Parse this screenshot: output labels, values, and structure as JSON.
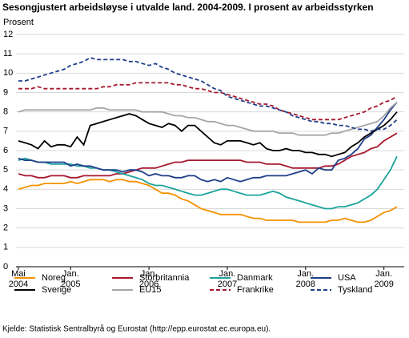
{
  "chart_data": {
    "type": "line",
    "title": "Sesongjustert arbeidsløyse i utvalde land. 2004-2009. I prosent av arbeidsstyrken",
    "y_label": "Prosent",
    "source": "Kjelde: Statistisk Sentralbyrå og Eurostat (http://epp.eurostat.ec.europa.eu).",
    "categories": [
      "Mai\n2004",
      null,
      null,
      null,
      null,
      null,
      null,
      null,
      "Jan.\n2005",
      null,
      null,
      null,
      null,
      null,
      null,
      null,
      null,
      null,
      null,
      null,
      "Jan.\n2006",
      null,
      null,
      null,
      null,
      null,
      null,
      null,
      null,
      null,
      null,
      null,
      "Jan.\n2007",
      null,
      null,
      null,
      null,
      null,
      null,
      null,
      null,
      null,
      null,
      null,
      "Jan.\n2008",
      null,
      null,
      null,
      null,
      null,
      null,
      null,
      null,
      null,
      null,
      null,
      "Jan.\n2009",
      null,
      null
    ],
    "ylim": [
      0,
      12
    ],
    "yticks": [
      0,
      1,
      2,
      3,
      4,
      5,
      6,
      7,
      8,
      9,
      10,
      11,
      12
    ],
    "grid": true,
    "series": [
      {
        "name": "Noreg",
        "color": "#f39200",
        "dashed": false,
        "values": [
          4.0,
          4.1,
          4.2,
          4.2,
          4.3,
          4.3,
          4.3,
          4.3,
          4.4,
          4.3,
          4.4,
          4.5,
          4.5,
          4.5,
          4.4,
          4.5,
          4.5,
          4.4,
          4.4,
          4.3,
          4.2,
          4.0,
          3.8,
          3.8,
          3.7,
          3.5,
          3.4,
          3.2,
          3.0,
          2.9,
          2.8,
          2.7,
          2.7,
          2.7,
          2.7,
          2.6,
          2.5,
          2.5,
          2.4,
          2.4,
          2.4,
          2.4,
          2.4,
          2.3,
          2.3,
          2.3,
          2.3,
          2.3,
          2.4,
          2.4,
          2.5,
          2.4,
          2.3,
          2.3,
          2.4,
          2.6,
          2.8,
          2.9,
          3.1
        ]
      },
      {
        "name": "Storbritannia",
        "color": "#a6192e",
        "dashed": false,
        "values": [
          4.8,
          4.7,
          4.7,
          4.6,
          4.6,
          4.7,
          4.7,
          4.7,
          4.6,
          4.6,
          4.7,
          4.7,
          4.7,
          4.7,
          4.7,
          4.8,
          4.8,
          4.9,
          5.0,
          5.1,
          5.1,
          5.1,
          5.2,
          5.3,
          5.4,
          5.4,
          5.5,
          5.5,
          5.5,
          5.5,
          5.5,
          5.5,
          5.5,
          5.5,
          5.5,
          5.4,
          5.4,
          5.4,
          5.3,
          5.3,
          5.3,
          5.2,
          5.1,
          5.1,
          5.1,
          5.1,
          5.1,
          5.2,
          5.2,
          5.3,
          5.5,
          5.7,
          5.8,
          5.9,
          6.1,
          6.2,
          6.5,
          6.7,
          6.9
        ]
      },
      {
        "name": "Danmark",
        "color": "#1aa39a",
        "dashed": false,
        "values": [
          5.5,
          5.6,
          5.5,
          5.4,
          5.4,
          5.3,
          5.3,
          5.3,
          5.3,
          5.2,
          5.2,
          5.1,
          5.1,
          5.0,
          5.0,
          4.9,
          4.8,
          4.7,
          4.6,
          4.5,
          4.3,
          4.2,
          4.2,
          4.1,
          4.0,
          3.9,
          3.8,
          3.7,
          3.7,
          3.8,
          3.9,
          4.0,
          4.0,
          3.9,
          3.8,
          3.7,
          3.7,
          3.7,
          3.8,
          3.9,
          3.8,
          3.6,
          3.5,
          3.4,
          3.3,
          3.2,
          3.1,
          3.0,
          3.0,
          3.1,
          3.1,
          3.2,
          3.3,
          3.5,
          3.7,
          4.0,
          4.5,
          5.0,
          5.7
        ]
      },
      {
        "name": "USA",
        "color": "#1f3e8a",
        "dashed": false,
        "values": [
          5.6,
          5.5,
          5.5,
          5.4,
          5.4,
          5.4,
          5.4,
          5.4,
          5.2,
          5.3,
          5.2,
          5.2,
          5.1,
          5.0,
          5.0,
          5.0,
          4.9,
          5.0,
          5.0,
          4.9,
          4.7,
          4.8,
          4.7,
          4.7,
          4.6,
          4.6,
          4.7,
          4.7,
          4.5,
          4.4,
          4.5,
          4.4,
          4.6,
          4.5,
          4.4,
          4.5,
          4.6,
          4.6,
          4.7,
          4.7,
          4.7,
          4.7,
          4.8,
          4.9,
          5.0,
          4.8,
          5.1,
          5.0,
          5.0,
          5.5,
          5.6,
          5.8,
          6.1,
          6.6,
          6.8,
          7.2,
          7.6,
          8.1,
          8.5
        ]
      },
      {
        "name": "Sverige",
        "color": "#000000",
        "dashed": false,
        "values": [
          6.5,
          6.4,
          6.3,
          6.1,
          6.5,
          6.2,
          6.3,
          6.3,
          6.2,
          6.7,
          6.3,
          7.3,
          7.4,
          7.5,
          7.6,
          7.7,
          7.8,
          7.9,
          7.8,
          7.6,
          7.4,
          7.3,
          7.2,
          7.4,
          7.3,
          7.0,
          7.3,
          7.3,
          7.0,
          6.7,
          6.4,
          6.3,
          6.5,
          6.5,
          6.5,
          6.4,
          6.3,
          6.4,
          6.1,
          6.0,
          6.0,
          6.1,
          6.0,
          6.0,
          5.9,
          5.9,
          5.8,
          5.8,
          5.7,
          5.8,
          5.9,
          6.2,
          6.4,
          6.7,
          6.9,
          7.1,
          7.3,
          7.6,
          8.0
        ]
      },
      {
        "name": "EU15",
        "color": "#a6a6a6",
        "dashed": false,
        "values": [
          8.0,
          8.1,
          8.1,
          8.1,
          8.1,
          8.1,
          8.1,
          8.1,
          8.1,
          8.1,
          8.1,
          8.1,
          8.2,
          8.2,
          8.1,
          8.1,
          8.1,
          8.1,
          8.1,
          8.0,
          8.0,
          8.0,
          8.0,
          7.9,
          7.8,
          7.8,
          7.7,
          7.7,
          7.6,
          7.5,
          7.5,
          7.4,
          7.3,
          7.3,
          7.2,
          7.1,
          7.0,
          7.0,
          7.0,
          7.0,
          6.9,
          6.9,
          6.9,
          6.8,
          6.8,
          6.8,
          6.8,
          6.8,
          6.9,
          6.9,
          7.0,
          7.1,
          7.2,
          7.3,
          7.4,
          7.5,
          7.8,
          8.2,
          8.5
        ]
      },
      {
        "name": "Frankrike",
        "color": "#a6192e",
        "dashed": true,
        "values": [
          9.2,
          9.2,
          9.2,
          9.3,
          9.2,
          9.2,
          9.2,
          9.2,
          9.2,
          9.2,
          9.2,
          9.2,
          9.2,
          9.3,
          9.3,
          9.4,
          9.4,
          9.4,
          9.5,
          9.5,
          9.5,
          9.5,
          9.5,
          9.5,
          9.4,
          9.4,
          9.3,
          9.2,
          9.2,
          9.1,
          9.0,
          9.0,
          8.9,
          8.8,
          8.7,
          8.6,
          8.5,
          8.4,
          8.4,
          8.3,
          8.1,
          8.0,
          7.9,
          7.8,
          7.7,
          7.6,
          7.6,
          7.6,
          7.6,
          7.6,
          7.7,
          7.8,
          7.9,
          8.0,
          8.2,
          8.3,
          8.5,
          8.6,
          8.8
        ]
      },
      {
        "name": "Tyskland",
        "color": "#1f3e8a",
        "dashed": true,
        "values": [
          9.6,
          9.6,
          9.7,
          9.8,
          9.9,
          10.0,
          10.1,
          10.2,
          10.4,
          10.5,
          10.6,
          10.8,
          10.7,
          10.7,
          10.7,
          10.7,
          10.7,
          10.6,
          10.6,
          10.5,
          10.4,
          10.5,
          10.3,
          10.2,
          10.0,
          9.9,
          9.8,
          9.7,
          9.6,
          9.4,
          9.2,
          9.1,
          8.8,
          8.7,
          8.6,
          8.5,
          8.4,
          8.3,
          8.3,
          8.2,
          8.1,
          8.0,
          7.8,
          7.7,
          7.6,
          7.5,
          7.5,
          7.4,
          7.4,
          7.3,
          7.3,
          7.2,
          7.1,
          7.1,
          7.0,
          7.1,
          7.1,
          7.3,
          7.6
        ]
      }
    ]
  }
}
